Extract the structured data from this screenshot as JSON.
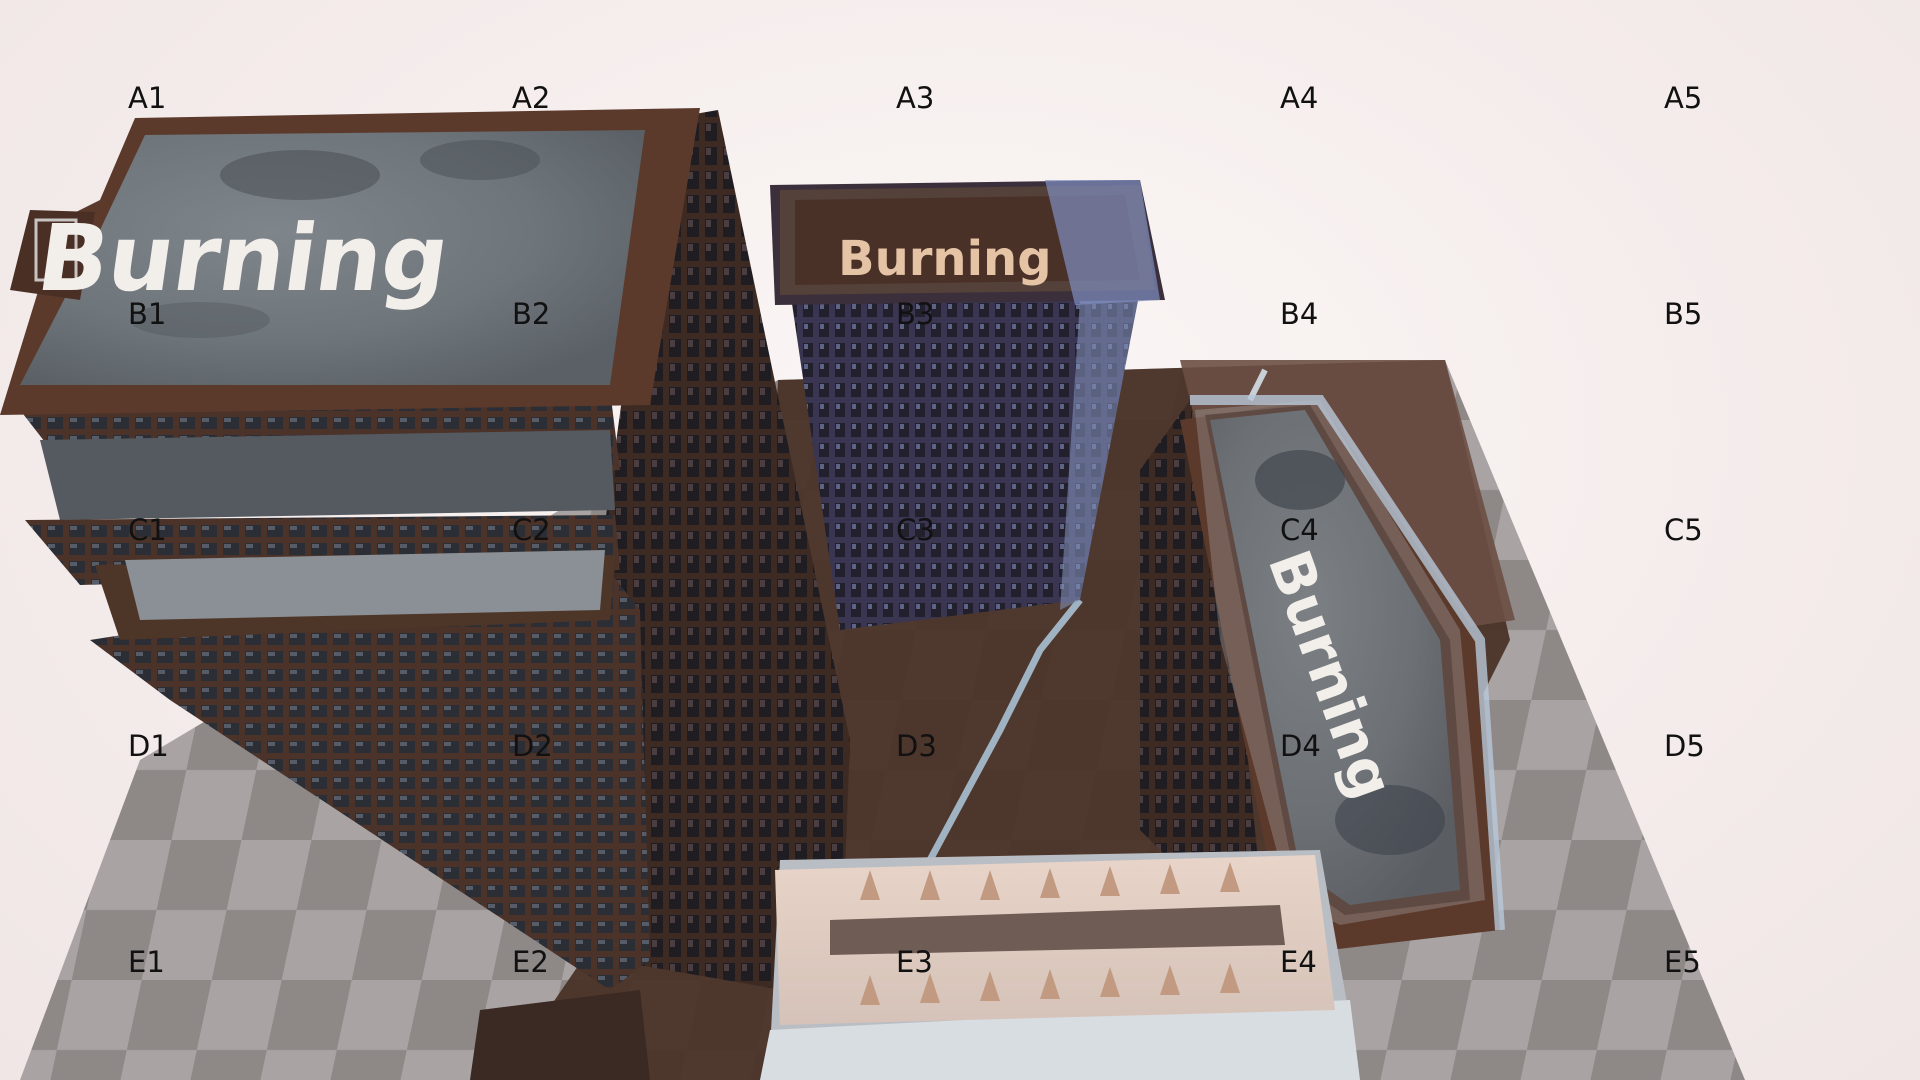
{
  "scene": {
    "rooftop_sign_text": "Burning",
    "colors": {
      "background": "#f6f0ef",
      "ground_dark": "#4a3a33",
      "ground_light": "#8a8281",
      "checker_light": "#b5b0af",
      "building_frame": "#5b3a2c",
      "roof_concrete": "#8d9296",
      "window_dark": "#2c2f36",
      "sign_white": "#f2eeea",
      "sign_tan": "#e5c4a6"
    }
  },
  "grid": {
    "rows": [
      {
        "cells": [
          "A1",
          "A2",
          "A3",
          "A4",
          "A5"
        ]
      },
      {
        "cells": [
          "B1",
          "B2",
          "B3",
          "B4",
          "B5"
        ]
      },
      {
        "cells": [
          "C1",
          "C2",
          "C3",
          "C4",
          "C5"
        ]
      },
      {
        "cells": [
          "D1",
          "D2",
          "D3",
          "D4",
          "D5"
        ]
      },
      {
        "cells": [
          "E1",
          "E2",
          "E3",
          "E4",
          "E5"
        ]
      }
    ]
  }
}
